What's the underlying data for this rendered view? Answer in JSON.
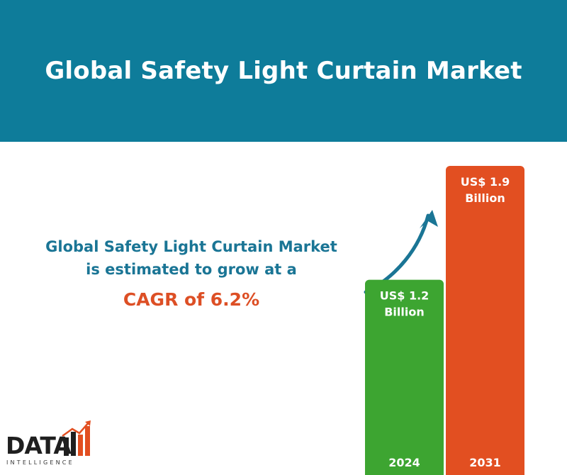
{
  "header": {
    "title": "Global Safety Light Curtain Market"
  },
  "summary": {
    "line": "Global Safety Light Curtain Market is estimated to grow at a",
    "cagr": "CAGR of 6.2%"
  },
  "colors": {
    "header_bg": "#0e7c9a",
    "text_teal": "#1a7595",
    "accent_orange": "#dd4f25",
    "bar_green": "#3da531",
    "bar_orange": "#e24f21"
  },
  "logo": {
    "name": "DATA",
    "sub": "INTELLIGENCE"
  },
  "chart_data": {
    "type": "bar",
    "categories": [
      "2024",
      "2031"
    ],
    "values": [
      1.2,
      1.9
    ],
    "data_labels": [
      [
        "US$ 1.2",
        "Billion"
      ],
      [
        "US$ 1.9",
        "Billion"
      ]
    ],
    "title": "",
    "xlabel": "",
    "ylabel": "",
    "unit": "US$ Billion",
    "ylim": [
      0,
      1.9
    ],
    "grid": false,
    "bar_colors": [
      "#3da531",
      "#e24f21"
    ]
  }
}
